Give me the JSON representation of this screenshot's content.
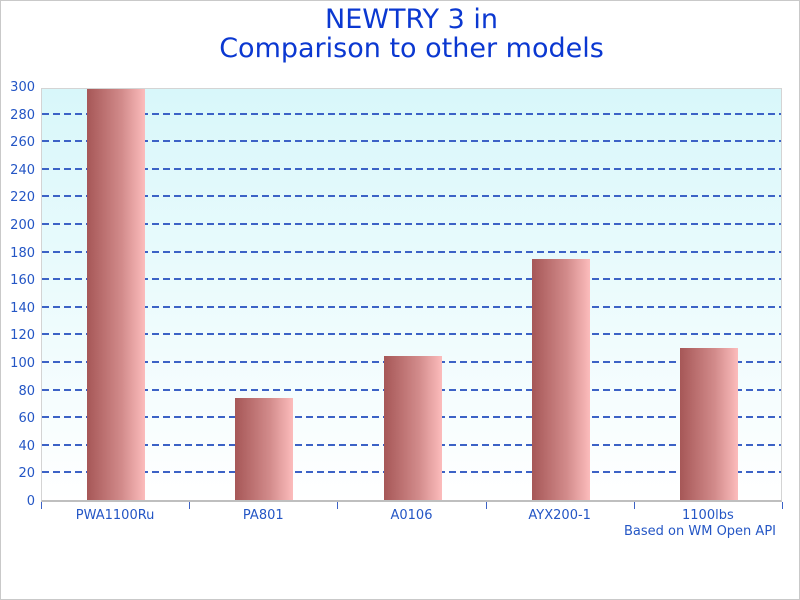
{
  "chart_data": {
    "type": "bar",
    "title": "NEWTRY 3 in Comparison to other models",
    "title_lines": [
      "NEWTRY 3 in",
      "Comparison to other models"
    ],
    "categories": [
      "PWA1100Ru",
      "PA801",
      "A0106",
      "AYX200-1",
      "1100lbs"
    ],
    "values": [
      298,
      74,
      104,
      175,
      110
    ],
    "xlabel": "",
    "ylabel": "",
    "ylim": [
      0,
      300
    ],
    "ytick_step": 20,
    "yticks": [
      0,
      20,
      40,
      60,
      80,
      100,
      120,
      140,
      160,
      180,
      200,
      220,
      240,
      260,
      280,
      300
    ],
    "grid": "horizontal-dashed",
    "legend": "none",
    "footnote": "Based on WM Open API",
    "colors": {
      "title_text": "#0b38d1",
      "axis_text": "#2456c5",
      "gridline": "#3c62c6",
      "tick": "#3c62c6",
      "plot_bg_top": "#d8f7fa",
      "plot_bg_bottom": "#ffffff",
      "bar_dark": "#a65757",
      "bar_mid": "#d28b8b",
      "bar_light": "#fcbcbc",
      "baseline": "#bfbfbf",
      "plot_border": "#d4d4d4",
      "frame_border": "#c9c9c9"
    }
  }
}
